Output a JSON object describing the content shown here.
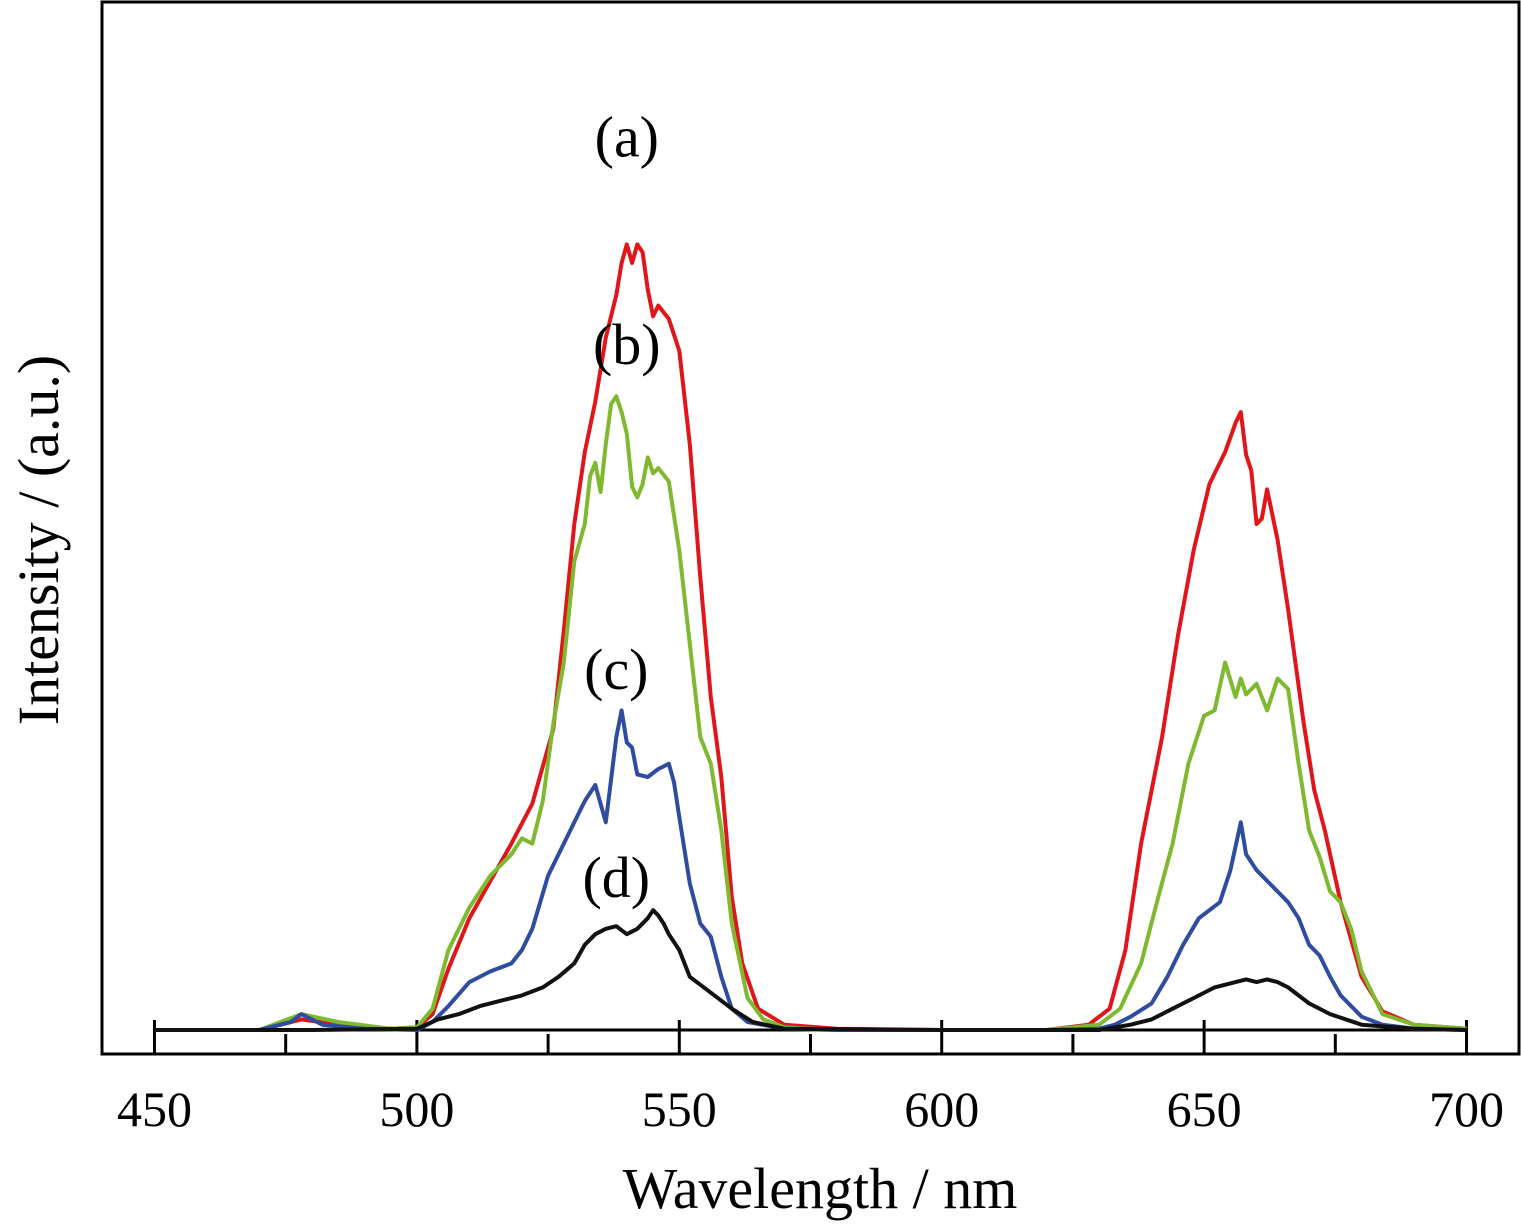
{
  "chart_data": {
    "type": "line",
    "xlabel": "Wavelength / nm",
    "ylabel": "Intensity / (a.u.)",
    "xlim": [
      440,
      710
    ],
    "ylim": [
      -0.9,
      38.6
    ],
    "x_ticks": [
      450,
      500,
      550,
      600,
      650,
      700
    ],
    "x_minor_ticks": [
      475,
      525,
      575,
      625,
      675
    ],
    "y_ticks_shown": false,
    "grid": false,
    "legend": "none",
    "series_labels": [
      {
        "text": "(a)",
        "x": 540,
        "y": 32.8
      },
      {
        "text": "(b)",
        "x": 540,
        "y": 25.0
      },
      {
        "text": "(c)",
        "x": 538,
        "y": 12.8
      },
      {
        "text": "(d)",
        "x": 538,
        "y": 5.0
      }
    ],
    "series": [
      {
        "label": "(a)",
        "color": "#e0161a",
        "points": [
          [
            450,
            0
          ],
          [
            470,
            0
          ],
          [
            478,
            0.4
          ],
          [
            485,
            0.2
          ],
          [
            495,
            0.05
          ],
          [
            500,
            0.1
          ],
          [
            503,
            0.6
          ],
          [
            506,
            2.3
          ],
          [
            510,
            4.2
          ],
          [
            514,
            5.6
          ],
          [
            518,
            7.0
          ],
          [
            522,
            8.5
          ],
          [
            526,
            11.3
          ],
          [
            528,
            15.0
          ],
          [
            530,
            19.0
          ],
          [
            532,
            21.7
          ],
          [
            534,
            23.6
          ],
          [
            536,
            26.0
          ],
          [
            538,
            27.6
          ],
          [
            539,
            28.8
          ],
          [
            540,
            29.5
          ],
          [
            541,
            28.8
          ],
          [
            542,
            29.5
          ],
          [
            543,
            29.2
          ],
          [
            544,
            27.8
          ],
          [
            545,
            26.8
          ],
          [
            546,
            27.2
          ],
          [
            548,
            26.7
          ],
          [
            550,
            25.5
          ],
          [
            552,
            22.0
          ],
          [
            554,
            17.0
          ],
          [
            556,
            12.5
          ],
          [
            558,
            9.5
          ],
          [
            560,
            5.0
          ],
          [
            562,
            2.5
          ],
          [
            565,
            0.8
          ],
          [
            570,
            0.2
          ],
          [
            580,
            0.05
          ],
          [
            600,
            0
          ],
          [
            620,
            0
          ],
          [
            628,
            0.2
          ],
          [
            632,
            0.8
          ],
          [
            635,
            3.0
          ],
          [
            638,
            7.0
          ],
          [
            642,
            11.0
          ],
          [
            645,
            14.8
          ],
          [
            648,
            18.0
          ],
          [
            651,
            20.5
          ],
          [
            654,
            21.7
          ],
          [
            656,
            22.8
          ],
          [
            657,
            23.2
          ],
          [
            658,
            21.6
          ],
          [
            659,
            21.0
          ],
          [
            660,
            19.0
          ],
          [
            661,
            19.2
          ],
          [
            662,
            20.3
          ],
          [
            664,
            18.4
          ],
          [
            666,
            15.8
          ],
          [
            669,
            11.5
          ],
          [
            671,
            9.0
          ],
          [
            673,
            7.5
          ],
          [
            676,
            4.8
          ],
          [
            680,
            2.0
          ],
          [
            684,
            0.7
          ],
          [
            690,
            0.2
          ],
          [
            700,
            0.05
          ]
        ]
      },
      {
        "label": "(b)",
        "color": "#7fb92f",
        "points": [
          [
            450,
            0
          ],
          [
            470,
            0
          ],
          [
            478,
            0.6
          ],
          [
            485,
            0.3
          ],
          [
            495,
            0.05
          ],
          [
            500,
            0.1
          ],
          [
            503,
            0.8
          ],
          [
            506,
            3.0
          ],
          [
            510,
            4.6
          ],
          [
            514,
            5.8
          ],
          [
            518,
            6.6
          ],
          [
            520,
            7.2
          ],
          [
            522,
            7.0
          ],
          [
            524,
            8.6
          ],
          [
            526,
            11.5
          ],
          [
            528,
            13.8
          ],
          [
            530,
            17.6
          ],
          [
            532,
            19.0
          ],
          [
            533,
            20.8
          ],
          [
            534,
            21.3
          ],
          [
            535,
            20.2
          ],
          [
            536,
            22.0
          ],
          [
            537,
            23.5
          ],
          [
            538,
            23.8
          ],
          [
            539,
            23.2
          ],
          [
            540,
            22.4
          ],
          [
            541,
            20.4
          ],
          [
            542,
            20.0
          ],
          [
            543,
            20.5
          ],
          [
            544,
            21.5
          ],
          [
            545,
            20.9
          ],
          [
            546,
            21.1
          ],
          [
            548,
            20.6
          ],
          [
            550,
            18.0
          ],
          [
            552,
            14.5
          ],
          [
            554,
            11.0
          ],
          [
            556,
            10.0
          ],
          [
            558,
            7.5
          ],
          [
            560,
            4.0
          ],
          [
            563,
            1.2
          ],
          [
            566,
            0.4
          ],
          [
            570,
            0.1
          ],
          [
            580,
            0
          ],
          [
            620,
            0
          ],
          [
            630,
            0.2
          ],
          [
            634,
            0.8
          ],
          [
            638,
            2.5
          ],
          [
            641,
            4.8
          ],
          [
            644,
            7.0
          ],
          [
            647,
            10.0
          ],
          [
            650,
            11.8
          ],
          [
            652,
            12.0
          ],
          [
            654,
            13.8
          ],
          [
            656,
            12.5
          ],
          [
            657,
            13.2
          ],
          [
            658,
            12.6
          ],
          [
            660,
            13.0
          ],
          [
            662,
            12.0
          ],
          [
            664,
            13.2
          ],
          [
            666,
            12.8
          ],
          [
            668,
            10.0
          ],
          [
            670,
            7.5
          ],
          [
            672,
            6.5
          ],
          [
            674,
            5.2
          ],
          [
            676,
            4.8
          ],
          [
            678,
            3.8
          ],
          [
            680,
            2.2
          ],
          [
            684,
            0.6
          ],
          [
            690,
            0.2
          ],
          [
            700,
            0.05
          ]
        ]
      },
      {
        "label": "(c)",
        "color": "#2f4da0",
        "points": [
          [
            450,
            0
          ],
          [
            470,
            0
          ],
          [
            476,
            0.3
          ],
          [
            478,
            0.6
          ],
          [
            482,
            0.2
          ],
          [
            490,
            0.05
          ],
          [
            500,
            0
          ],
          [
            503,
            0.3
          ],
          [
            506,
            0.9
          ],
          [
            510,
            1.8
          ],
          [
            514,
            2.2
          ],
          [
            518,
            2.5
          ],
          [
            520,
            3.0
          ],
          [
            522,
            3.8
          ],
          [
            525,
            5.8
          ],
          [
            528,
            7.0
          ],
          [
            530,
            7.8
          ],
          [
            532,
            8.6
          ],
          [
            534,
            9.2
          ],
          [
            536,
            7.8
          ],
          [
            538,
            11.0
          ],
          [
            539,
            12.0
          ],
          [
            540,
            10.8
          ],
          [
            541,
            10.6
          ],
          [
            542,
            9.6
          ],
          [
            544,
            9.5
          ],
          [
            546,
            9.8
          ],
          [
            547,
            9.9
          ],
          [
            548,
            10.0
          ],
          [
            549,
            9.3
          ],
          [
            550,
            8.0
          ],
          [
            552,
            5.5
          ],
          [
            554,
            4.0
          ],
          [
            556,
            3.5
          ],
          [
            558,
            2.0
          ],
          [
            560,
            0.8
          ],
          [
            563,
            0.3
          ],
          [
            570,
            0.05
          ],
          [
            580,
            0
          ],
          [
            620,
            0
          ],
          [
            630,
            0.05
          ],
          [
            633,
            0.2
          ],
          [
            636,
            0.5
          ],
          [
            640,
            1.0
          ],
          [
            643,
            2.0
          ],
          [
            646,
            3.2
          ],
          [
            649,
            4.2
          ],
          [
            651,
            4.5
          ],
          [
            653,
            4.8
          ],
          [
            655,
            6.0
          ],
          [
            657,
            7.8
          ],
          [
            658,
            6.6
          ],
          [
            660,
            6.0
          ],
          [
            662,
            5.6
          ],
          [
            664,
            5.2
          ],
          [
            666,
            4.8
          ],
          [
            668,
            4.2
          ],
          [
            670,
            3.2
          ],
          [
            672,
            2.8
          ],
          [
            674,
            2.0
          ],
          [
            676,
            1.3
          ],
          [
            680,
            0.5
          ],
          [
            684,
            0.2
          ],
          [
            690,
            0.05
          ],
          [
            700,
            0
          ]
        ]
      },
      {
        "label": "(d)",
        "color": "#111111",
        "points": [
          [
            450,
            0
          ],
          [
            480,
            0
          ],
          [
            500,
            0.05
          ],
          [
            504,
            0.4
          ],
          [
            508,
            0.6
          ],
          [
            512,
            0.9
          ],
          [
            516,
            1.1
          ],
          [
            520,
            1.3
          ],
          [
            524,
            1.6
          ],
          [
            527,
            2.0
          ],
          [
            530,
            2.5
          ],
          [
            532,
            3.2
          ],
          [
            534,
            3.6
          ],
          [
            536,
            3.8
          ],
          [
            538,
            3.9
          ],
          [
            540,
            3.6
          ],
          [
            542,
            3.8
          ],
          [
            544,
            4.2
          ],
          [
            545,
            4.5
          ],
          [
            546,
            4.3
          ],
          [
            547,
            4.0
          ],
          [
            548,
            3.6
          ],
          [
            550,
            3.0
          ],
          [
            552,
            2.0
          ],
          [
            556,
            1.4
          ],
          [
            560,
            0.8
          ],
          [
            564,
            0.3
          ],
          [
            570,
            0.05
          ],
          [
            600,
            0
          ],
          [
            630,
            0
          ],
          [
            636,
            0.2
          ],
          [
            640,
            0.4
          ],
          [
            644,
            0.8
          ],
          [
            648,
            1.2
          ],
          [
            652,
            1.6
          ],
          [
            656,
            1.8
          ],
          [
            658,
            1.9
          ],
          [
            660,
            1.8
          ],
          [
            662,
            1.9
          ],
          [
            664,
            1.8
          ],
          [
            666,
            1.6
          ],
          [
            670,
            1.0
          ],
          [
            674,
            0.6
          ],
          [
            680,
            0.2
          ],
          [
            690,
            0.05
          ],
          [
            700,
            0
          ]
        ]
      }
    ]
  }
}
